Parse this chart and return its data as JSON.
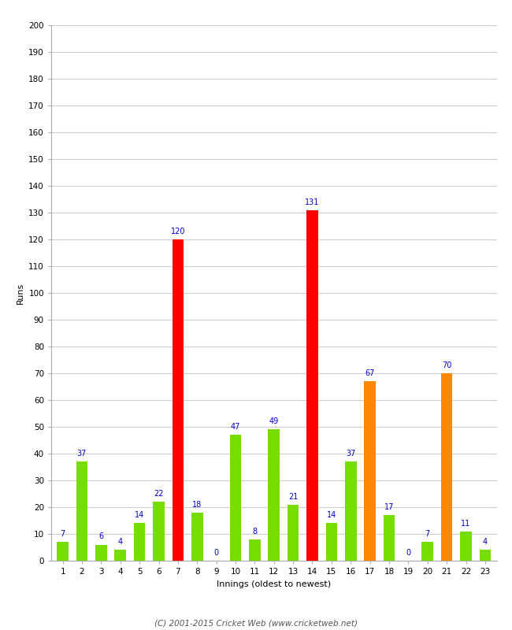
{
  "innings": [
    1,
    2,
    3,
    4,
    5,
    6,
    7,
    8,
    9,
    10,
    11,
    12,
    13,
    14,
    15,
    16,
    17,
    18,
    19,
    20,
    21,
    22,
    23
  ],
  "values": [
    7,
    37,
    6,
    4,
    14,
    22,
    120,
    18,
    0,
    47,
    8,
    49,
    21,
    131,
    14,
    37,
    67,
    17,
    0,
    7,
    70,
    11,
    4
  ],
  "colors": [
    "#77dd00",
    "#77dd00",
    "#77dd00",
    "#77dd00",
    "#77dd00",
    "#77dd00",
    "#ff0000",
    "#77dd00",
    "#77dd00",
    "#77dd00",
    "#77dd00",
    "#77dd00",
    "#77dd00",
    "#ff0000",
    "#77dd00",
    "#77dd00",
    "#ff8800",
    "#77dd00",
    "#77dd00",
    "#77dd00",
    "#ff8800",
    "#77dd00",
    "#77dd00"
  ],
  "xlabel": "Innings (oldest to newest)",
  "ylabel": "Runs",
  "ylim": [
    0,
    200
  ],
  "yticks": [
    0,
    10,
    20,
    30,
    40,
    50,
    60,
    70,
    80,
    90,
    100,
    110,
    120,
    130,
    140,
    150,
    160,
    170,
    180,
    190,
    200
  ],
  "footer": "(C) 2001-2015 Cricket Web (www.cricketweb.net)",
  "label_color": "#0000cc",
  "label_fontsize": 7.0,
  "axis_label_fontsize": 8,
  "tick_fontsize": 7.5,
  "background_color": "#ffffff",
  "grid_color": "#cccccc",
  "bar_width": 0.6
}
